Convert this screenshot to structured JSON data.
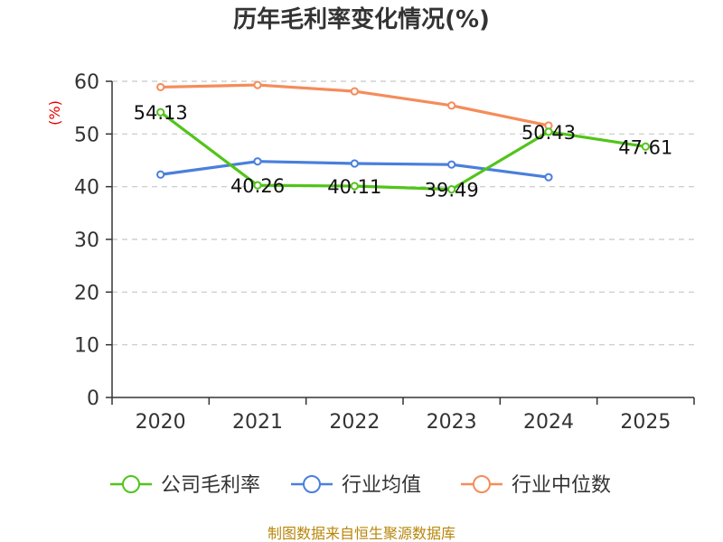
{
  "chart_data": {
    "type": "line",
    "title": "历年毛利率变化情况(%)",
    "ylabel": "(%)",
    "xlabel": "",
    "categories": [
      "2020",
      "2021",
      "2022",
      "2023",
      "2024",
      "2025"
    ],
    "ylim": [
      0,
      60
    ],
    "yticks": [
      0,
      10,
      20,
      30,
      40,
      50,
      60
    ],
    "grid": true,
    "legend_position": "bottom",
    "series": [
      {
        "name": "公司毛利率",
        "color": "#52c41a",
        "values": [
          54.13,
          40.26,
          40.11,
          39.49,
          50.43,
          47.61
        ],
        "labels": [
          "54.13",
          "40.26",
          "40.11",
          "39.49",
          "50.43",
          "47.61"
        ]
      },
      {
        "name": "行业均值",
        "color": "#4a7fdc",
        "values": [
          42.3,
          44.8,
          44.4,
          44.2,
          41.8,
          null
        ]
      },
      {
        "name": "行业中位数",
        "color": "#f58c5a",
        "values": [
          58.9,
          59.3,
          58.1,
          55.4,
          51.6,
          null
        ]
      }
    ]
  },
  "source_note": "制图数据来自恒生聚源数据库"
}
